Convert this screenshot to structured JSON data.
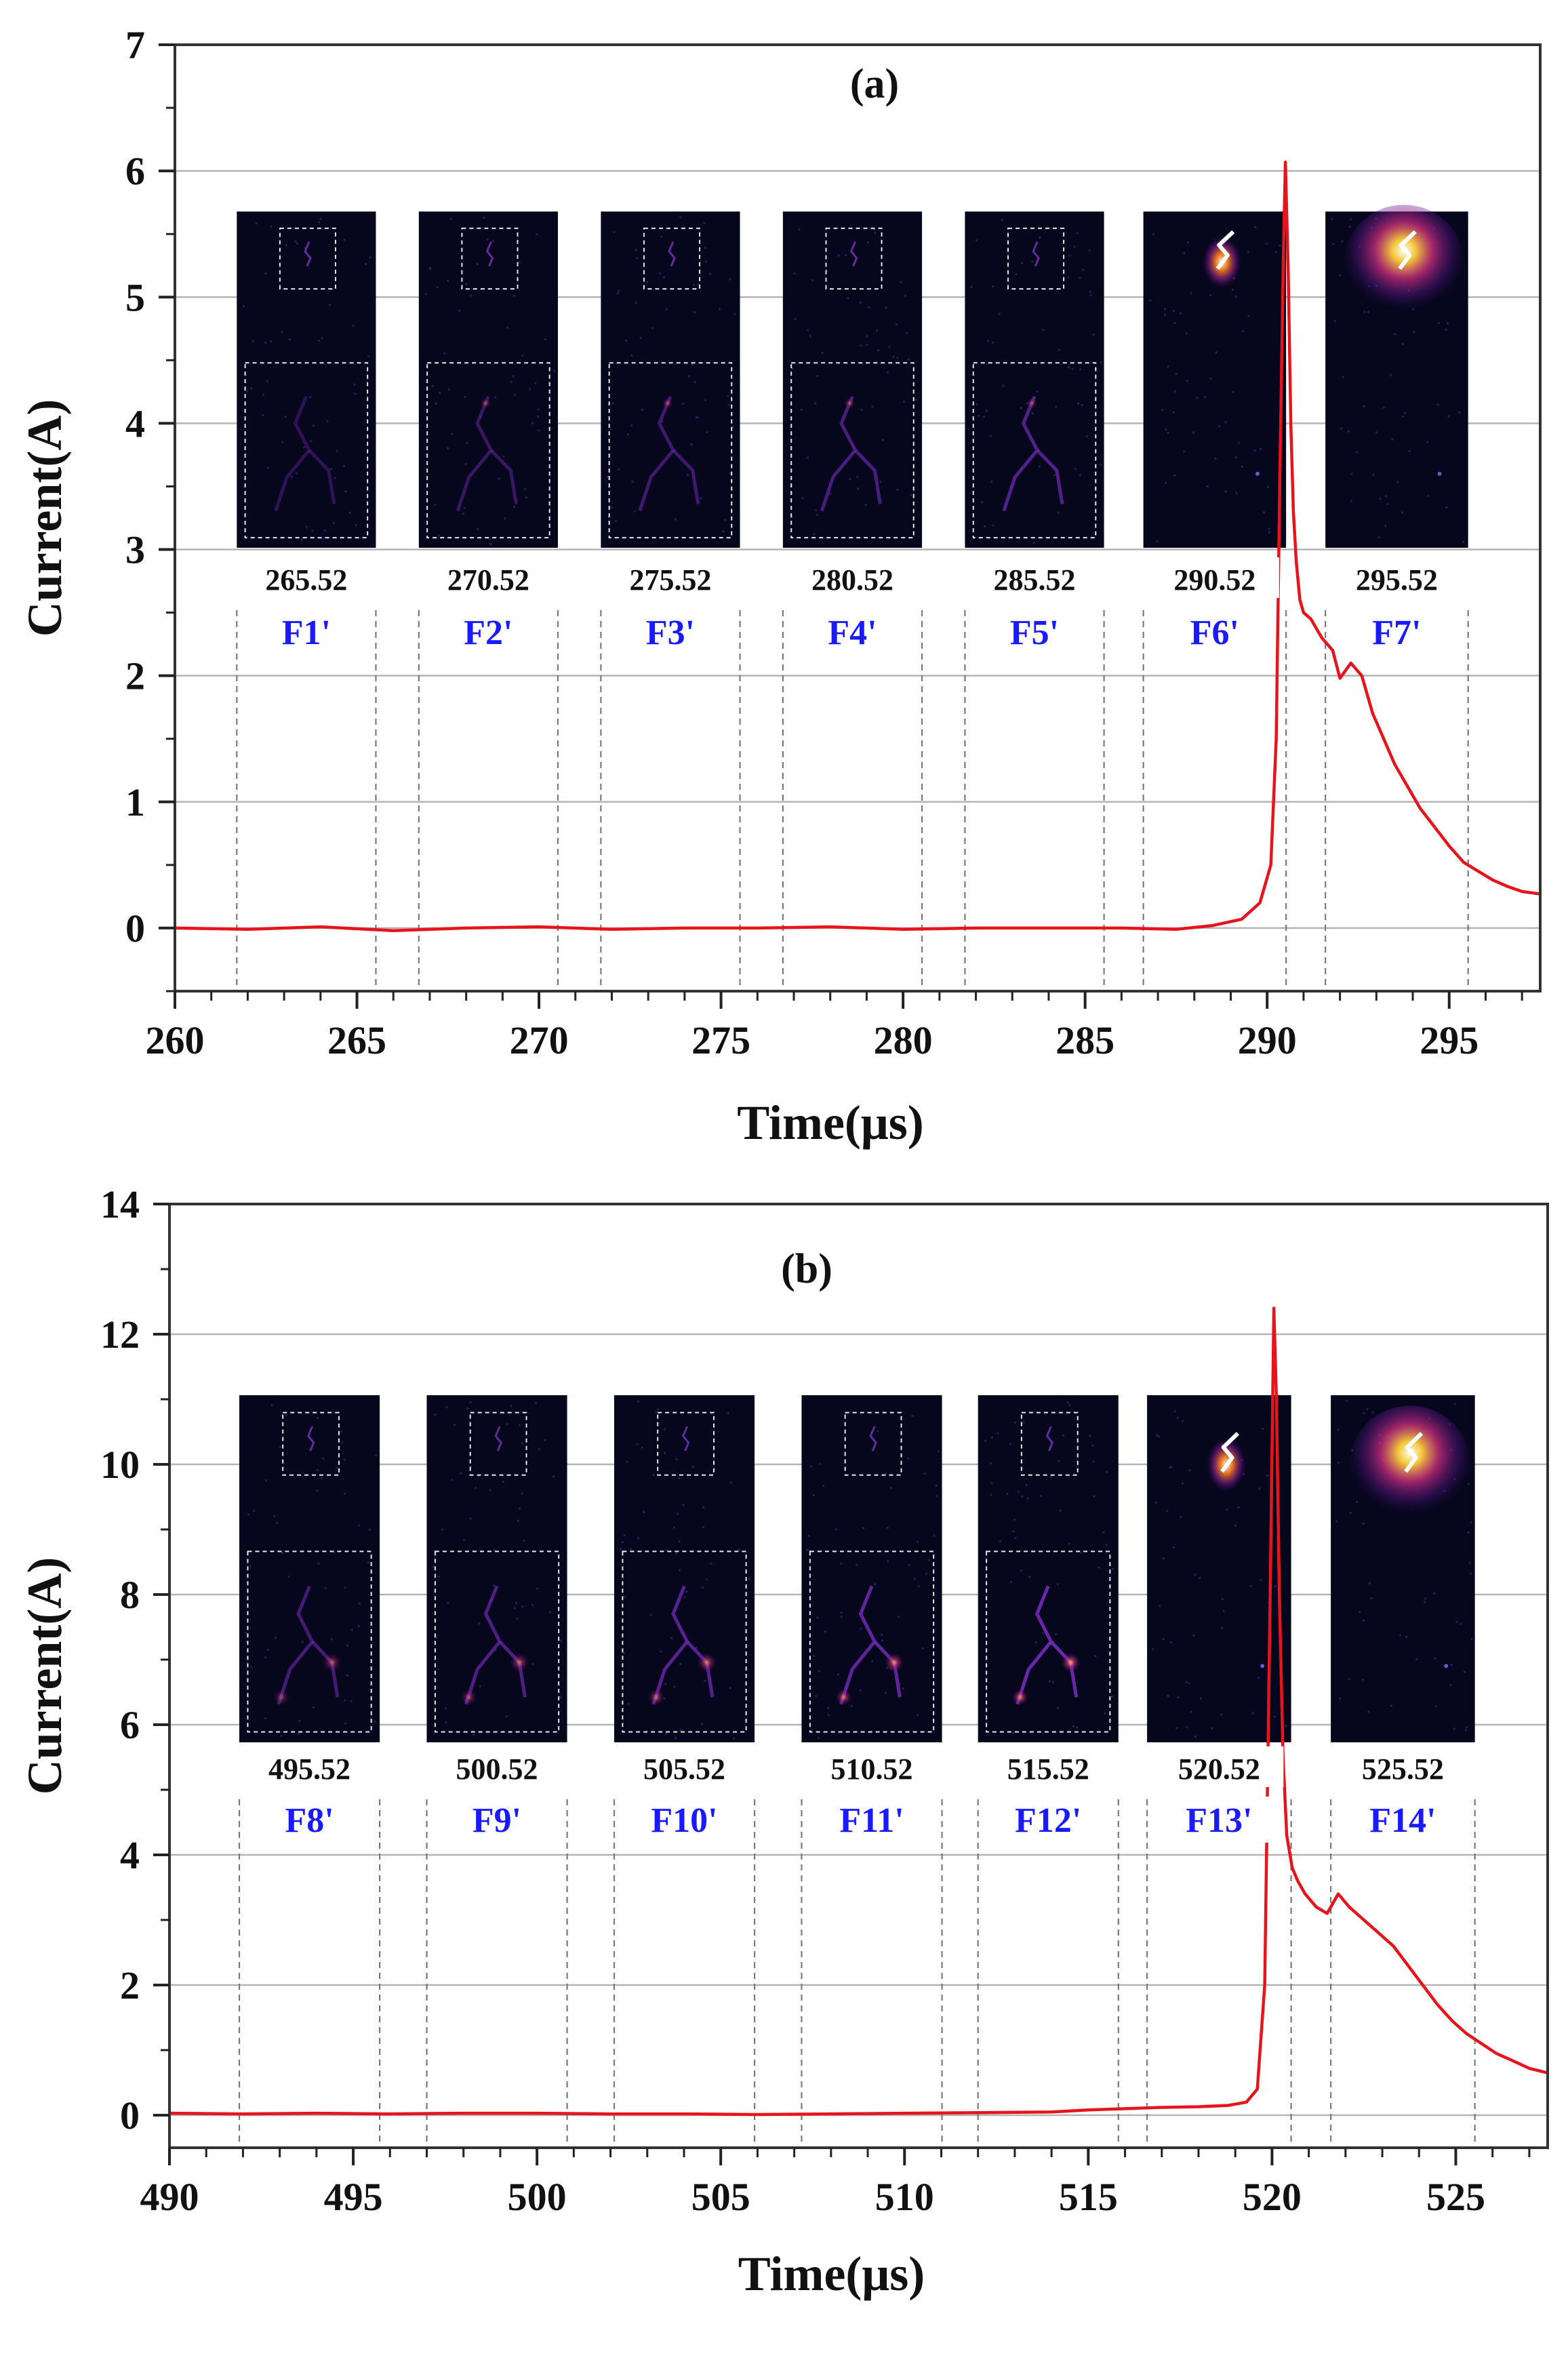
{
  "colors": {
    "curve": "#e8141c",
    "frame_label": "#1a1aff",
    "grid": "#b4b4b4",
    "guide": "#7a7a7a",
    "inset_bg": "#06061c"
  },
  "chart_data": [
    {
      "type": "line",
      "panel": "(a)",
      "xlabel": "Time(μs)",
      "ylabel": "Current(A)",
      "xlim": [
        260,
        297.5
      ],
      "ylim": [
        -0.5,
        7
      ],
      "xticks": [
        260,
        265,
        270,
        275,
        280,
        285,
        290,
        295
      ],
      "yticks": [
        0,
        1,
        2,
        3,
        4,
        5,
        6,
        7
      ],
      "grid": true,
      "series": [
        {
          "name": "Current",
          "x": [
            260,
            262,
            264,
            266,
            268,
            270,
            272,
            274,
            276,
            278,
            280,
            282,
            284,
            286,
            287.5,
            288.5,
            289.3,
            289.8,
            290.1,
            290.25,
            290.35,
            290.45,
            290.5,
            290.58,
            290.65,
            290.72,
            290.8,
            290.9,
            291.0,
            291.2,
            291.5,
            291.8,
            292.0,
            292.3,
            292.6,
            292.9,
            293.2,
            293.5,
            293.8,
            294.2,
            294.6,
            295.0,
            295.4,
            295.8,
            296.2,
            296.6,
            297.0,
            297.5
          ],
          "values": [
            0.0,
            -0.01,
            0.01,
            -0.02,
            0.0,
            0.01,
            -0.01,
            0.0,
            0.0,
            0.01,
            -0.01,
            0.0,
            0.0,
            0.0,
            -0.01,
            0.02,
            0.07,
            0.2,
            0.5,
            1.5,
            3.6,
            5.4,
            6.07,
            5.2,
            4.0,
            3.3,
            2.9,
            2.6,
            2.5,
            2.45,
            2.3,
            2.2,
            1.98,
            2.1,
            2.0,
            1.7,
            1.5,
            1.3,
            1.15,
            0.95,
            0.8,
            0.65,
            0.52,
            0.45,
            0.38,
            0.33,
            0.29,
            0.27
          ]
        }
      ],
      "frames": [
        {
          "label": "F1'",
          "time": "265.52",
          "start": 261.7,
          "end": 265.52,
          "bright": false
        },
        {
          "label": "F2'",
          "time": "270.52",
          "start": 266.7,
          "end": 270.52,
          "bright": false
        },
        {
          "label": "F3'",
          "time": "275.52",
          "start": 271.7,
          "end": 275.52,
          "bright": false
        },
        {
          "label": "F4'",
          "time": "280.52",
          "start": 276.7,
          "end": 280.52,
          "bright": false
        },
        {
          "label": "F5'",
          "time": "285.52",
          "start": 281.7,
          "end": 285.52,
          "bright": false
        },
        {
          "label": "F6'",
          "time": "290.52",
          "start": 286.6,
          "end": 290.52,
          "bright": true
        },
        {
          "label": "F7'",
          "time": "295.52",
          "start": 291.6,
          "end": 295.52,
          "bright": true
        }
      ]
    },
    {
      "type": "line",
      "panel": "(b)",
      "xlabel": "Time(μs)",
      "ylabel": "Current(A)",
      "xlim": [
        490,
        527.5
      ],
      "ylim": [
        -0.5,
        14
      ],
      "xticks": [
        490,
        495,
        500,
        505,
        510,
        515,
        520,
        525
      ],
      "yticks": [
        0,
        2,
        4,
        6,
        8,
        10,
        12,
        14
      ],
      "grid": true,
      "series": [
        {
          "name": "Current",
          "x": [
            490,
            492,
            494,
            496,
            498,
            500,
            502,
            504,
            506,
            508,
            510,
            512,
            514,
            515,
            516,
            517,
            518,
            518.8,
            519.3,
            519.6,
            519.8,
            519.95,
            520.05,
            520.12,
            520.2,
            520.3,
            520.4,
            520.55,
            520.7,
            520.9,
            521.2,
            521.5,
            521.8,
            522.1,
            522.5,
            522.9,
            523.3,
            523.7,
            524.1,
            524.5,
            524.9,
            525.3,
            525.7,
            526.1,
            526.5,
            527.0,
            527.5
          ],
          "values": [
            0.03,
            0.02,
            0.03,
            0.02,
            0.03,
            0.03,
            0.02,
            0.02,
            0.01,
            0.02,
            0.03,
            0.04,
            0.05,
            0.08,
            0.1,
            0.12,
            0.13,
            0.15,
            0.2,
            0.4,
            2.0,
            8.0,
            12.4,
            11.0,
            8.0,
            5.5,
            4.3,
            3.8,
            3.6,
            3.4,
            3.2,
            3.1,
            3.4,
            3.2,
            3.0,
            2.8,
            2.6,
            2.3,
            2.0,
            1.7,
            1.45,
            1.25,
            1.1,
            0.95,
            0.85,
            0.72,
            0.65
          ]
        }
      ],
      "frames": [
        {
          "label": "F8'",
          "time": "495.52",
          "start": 491.9,
          "end": 495.72,
          "bright": false
        },
        {
          "label": "F9'",
          "time": "500.52",
          "start": 497.0,
          "end": 500.82,
          "bright": false
        },
        {
          "label": "F10'",
          "time": "505.52",
          "start": 502.1,
          "end": 505.92,
          "bright": false
        },
        {
          "label": "F11'",
          "time": "510.52",
          "start": 507.2,
          "end": 511.02,
          "bright": false
        },
        {
          "label": "F12'",
          "time": "515.52",
          "start": 512.0,
          "end": 515.82,
          "bright": false
        },
        {
          "label": "F13'",
          "time": "520.52",
          "start": 516.6,
          "end": 520.52,
          "bright": true
        },
        {
          "label": "F14'",
          "time": "525.52",
          "start": 521.6,
          "end": 525.52,
          "bright": true
        }
      ]
    }
  ]
}
